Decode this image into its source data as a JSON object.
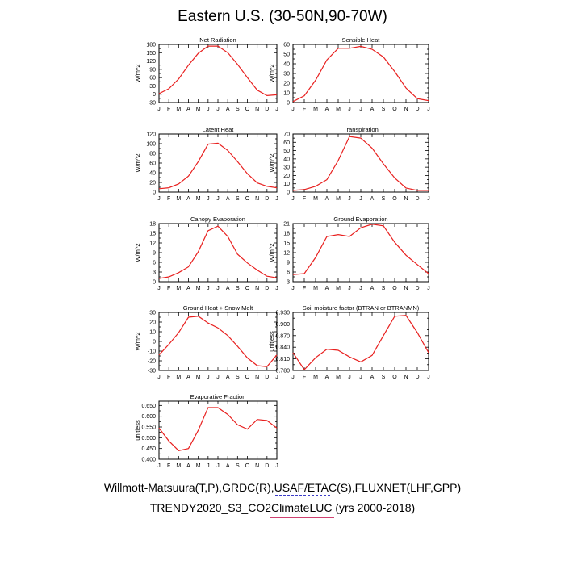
{
  "title": "Eastern U.S. (30-50N,90-70W)",
  "footer": {
    "line1": "Willmott-Matsuura(T,P),GRDC(R),USAF/ETAC(S),FLUXNET(LHF,GPP)",
    "line2": "TRENDY2020_S3_CO2ClimateLUC (yrs 2000-2018)"
  },
  "colors": {
    "line": "#e8201f",
    "axis": "#000000"
  },
  "chart_data": [
    {
      "type": "line",
      "title": "Net Radiation",
      "ylabel": "W/m^2",
      "categories": [
        "J",
        "F",
        "M",
        "A",
        "M",
        "J",
        "J",
        "A",
        "S",
        "O",
        "N",
        "D",
        "J"
      ],
      "yticks": [
        -30,
        -15,
        0,
        15,
        30,
        45,
        60,
        75,
        90,
        105,
        120,
        135,
        150,
        165,
        180
      ],
      "ytick_labels": [
        "-30",
        "",
        "0",
        "",
        "30",
        "",
        "60",
        "",
        "90",
        "",
        "120",
        "",
        "150",
        "",
        "180"
      ],
      "ylim": [
        -30,
        180
      ],
      "values": [
        2,
        20,
        55,
        105,
        148,
        174,
        174,
        150,
        108,
        60,
        15,
        -5,
        -2
      ]
    },
    {
      "type": "line",
      "title": "Sensible Heat",
      "ylabel": "W/m^2",
      "categories": [
        "J",
        "F",
        "M",
        "A",
        "M",
        "J",
        "J",
        "A",
        "S",
        "O",
        "N",
        "D",
        "J"
      ],
      "yticks": [
        0,
        5,
        10,
        15,
        20,
        25,
        30,
        35,
        40,
        45,
        50,
        55,
        60
      ],
      "ytick_labels": [
        "0",
        "",
        "10",
        "",
        "20",
        "",
        "30",
        "",
        "40",
        "",
        "50",
        "",
        "60"
      ],
      "ylim": [
        0,
        60
      ],
      "values": [
        1,
        7,
        23,
        44,
        56,
        56,
        58,
        55,
        47,
        32,
        15,
        4,
        2
      ]
    },
    {
      "type": "line",
      "title": "Latent Heat",
      "ylabel": "W/m^2",
      "categories": [
        "J",
        "F",
        "M",
        "A",
        "M",
        "J",
        "J",
        "A",
        "S",
        "O",
        "N",
        "D",
        "J"
      ],
      "yticks": [
        0,
        10,
        20,
        30,
        40,
        50,
        60,
        70,
        80,
        90,
        100,
        110,
        120
      ],
      "ytick_labels": [
        "0",
        "",
        "20",
        "",
        "40",
        "",
        "60",
        "",
        "80",
        "",
        "100",
        "",
        "120"
      ],
      "ylim": [
        0,
        120
      ],
      "values": [
        7,
        9,
        17,
        33,
        63,
        99,
        101,
        86,
        63,
        38,
        19,
        12,
        9
      ]
    },
    {
      "type": "line",
      "title": "Transpiration",
      "ylabel": "W/m^2",
      "categories": [
        "J",
        "F",
        "M",
        "A",
        "M",
        "J",
        "J",
        "A",
        "S",
        "O",
        "N",
        "D",
        "J"
      ],
      "yticks": [
        0,
        5,
        10,
        15,
        20,
        25,
        30,
        35,
        40,
        45,
        50,
        55,
        60,
        65,
        70
      ],
      "ytick_labels": [
        "0",
        "",
        "10",
        "",
        "20",
        "",
        "30",
        "",
        "40",
        "",
        "50",
        "",
        "60",
        "",
        "70"
      ],
      "ylim": [
        0,
        70
      ],
      "values": [
        2,
        3,
        7,
        15,
        38,
        67,
        65,
        53,
        34,
        17,
        5,
        2,
        2
      ]
    },
    {
      "type": "line",
      "title": "Canopy Evaporation",
      "ylabel": "W/m^2",
      "categories": [
        "J",
        "F",
        "M",
        "A",
        "M",
        "J",
        "J",
        "A",
        "S",
        "O",
        "N",
        "D",
        "J"
      ],
      "yticks": [
        0,
        1.5,
        3,
        4.5,
        6,
        7.5,
        9,
        10.5,
        12,
        13.5,
        15,
        16.5,
        18
      ],
      "ytick_labels": [
        "0",
        "",
        "3",
        "",
        "6",
        "",
        "9",
        "",
        "12",
        "",
        "15",
        "",
        "18"
      ],
      "ylim": [
        0,
        18
      ],
      "values": [
        1,
        1.5,
        2.8,
        4.6,
        9.3,
        15.8,
        17.2,
        14,
        8.5,
        5.8,
        3.6,
        1.7,
        1.2
      ]
    },
    {
      "type": "line",
      "title": "Ground Evaporation",
      "ylabel": "W/m^2",
      "categories": [
        "J",
        "F",
        "M",
        "A",
        "M",
        "J",
        "J",
        "A",
        "S",
        "O",
        "N",
        "D",
        "J"
      ],
      "yticks": [
        3,
        4.5,
        6,
        7.5,
        9,
        10.5,
        12,
        13.5,
        15,
        16.5,
        18,
        19.5,
        21
      ],
      "ytick_labels": [
        "3",
        "",
        "6",
        "",
        "9",
        "",
        "12",
        "",
        "15",
        "",
        "18",
        "",
        "21"
      ],
      "ylim": [
        3,
        21
      ],
      "values": [
        5.2,
        5.5,
        10.5,
        17,
        17.6,
        17,
        19.7,
        20.8,
        20.3,
        15.2,
        11.2,
        8.3,
        5.5
      ]
    },
    {
      "type": "line",
      "title": "Ground Heat + Snow Melt",
      "ylabel": "W/m^2",
      "categories": [
        "J",
        "F",
        "M",
        "A",
        "M",
        "J",
        "J",
        "A",
        "S",
        "O",
        "N",
        "D",
        "J"
      ],
      "yticks": [
        -30,
        -25,
        -20,
        -15,
        -10,
        -5,
        0,
        5,
        10,
        15,
        20,
        25,
        30
      ],
      "ytick_labels": [
        "-30",
        "",
        "-20",
        "",
        "-10",
        "",
        "0",
        "",
        "10",
        "",
        "20",
        "",
        "30"
      ],
      "ylim": [
        -30,
        30
      ],
      "values": [
        -14,
        -3,
        9,
        25,
        26,
        19,
        14,
        6,
        -5,
        -17,
        -25,
        -26,
        -14
      ]
    },
    {
      "type": "line",
      "title": "Soil moisture factor (BTRAN or BTRANMN)",
      "ylabel": "unitless",
      "categories": [
        "J",
        "F",
        "M",
        "A",
        "M",
        "J",
        "J",
        "A",
        "S",
        "O",
        "N",
        "D",
        "J"
      ],
      "yticks": [
        0.78,
        0.795,
        0.81,
        0.825,
        0.84,
        0.855,
        0.87,
        0.885,
        0.9,
        0.915,
        0.93
      ],
      "ytick_labels": [
        "0.780",
        "",
        "0.810",
        "",
        "0.840",
        "",
        "0.870",
        "",
        "0.900",
        "",
        "0.930"
      ],
      "ylim": [
        0.78,
        0.93
      ],
      "values": [
        0.826,
        0.782,
        0.813,
        0.835,
        0.832,
        0.815,
        0.802,
        0.819,
        0.87,
        0.92,
        0.922,
        0.878,
        0.826
      ]
    },
    {
      "type": "line",
      "title": "Evaporative Fraction",
      "ylabel": "unitless",
      "categories": [
        "J",
        "F",
        "M",
        "A",
        "M",
        "J",
        "J",
        "A",
        "S",
        "O",
        "N",
        "D",
        "J"
      ],
      "yticks": [
        0.4,
        0.425,
        0.45,
        0.475,
        0.5,
        0.525,
        0.55,
        0.575,
        0.6,
        0.625,
        0.65
      ],
      "ytick_labels": [
        "0.400",
        "",
        "0.450",
        "",
        "0.500",
        "",
        "0.550",
        "",
        "0.600",
        "",
        "0.650"
      ],
      "ylim": [
        0.4,
        0.67
      ],
      "values": [
        0.545,
        0.485,
        0.44,
        0.45,
        0.535,
        0.64,
        0.64,
        0.608,
        0.56,
        0.54,
        0.585,
        0.58,
        0.545
      ]
    }
  ]
}
